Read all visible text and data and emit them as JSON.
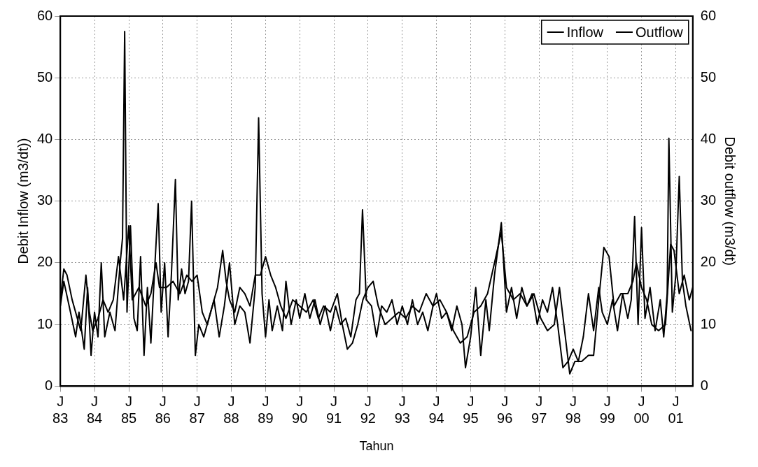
{
  "chart_data": {
    "type": "line",
    "xlabel": "Tahun",
    "ylabel": "Debit Inflow (m3/dt))",
    "y2label": "Debit outflow (m3/dt)",
    "xlim": [
      "1983-01-01",
      "2001-07-01"
    ],
    "xticks": [
      {
        "value": "1983-01-01",
        "label": "J\n83"
      },
      {
        "value": "1984-01-01",
        "label": "J\n84"
      },
      {
        "value": "1985-01-01",
        "label": "J\n85"
      },
      {
        "value": "1986-01-01",
        "label": "J\n86"
      },
      {
        "value": "1987-01-01",
        "label": "J\n87"
      },
      {
        "value": "1988-01-01",
        "label": "J\n88"
      },
      {
        "value": "1989-01-01",
        "label": "J\n89"
      },
      {
        "value": "1990-01-01",
        "label": "J\n90"
      },
      {
        "value": "1991-01-01",
        "label": "J\n91"
      },
      {
        "value": "1992-01-01",
        "label": "J\n92"
      },
      {
        "value": "1993-01-01",
        "label": "J\n93"
      },
      {
        "value": "1994-01-01",
        "label": "J\n94"
      },
      {
        "value": "1995-01-01",
        "label": "J\n95"
      },
      {
        "value": "1996-01-01",
        "label": "J\n96"
      },
      {
        "value": "1997-01-01",
        "label": "J\n97"
      },
      {
        "value": "1998-01-01",
        "label": "J\n98"
      },
      {
        "value": "1999-01-01",
        "label": "J\n99"
      },
      {
        "value": "2000-01-01",
        "label": "J\n00"
      },
      {
        "value": "2001-01-01",
        "label": "J\n01"
      }
    ],
    "ylim": [
      0,
      60
    ],
    "yticks": [
      0,
      10,
      20,
      30,
      40,
      50,
      60
    ],
    "y2lim": [
      0,
      60
    ],
    "y2ticks": [
      0,
      10,
      20,
      30,
      40,
      50,
      60
    ],
    "grid": true,
    "legend": "top right",
    "marker": "none",
    "line_style": "solid",
    "series": [
      {
        "name": "Inflow",
        "color": "#000000",
        "x": [
          "1983-01-01",
          "1983-02-07",
          "1983-04-19",
          "1983-06-13",
          "1983-07-19",
          "1983-09-13",
          "1983-10-19",
          "1983-11-25",
          "1984-01-01",
          "1984-02-07",
          "1984-03-13",
          "1984-04-19",
          "1984-06-13",
          "1984-08-07",
          "1984-10-01",
          "1984-10-26",
          "1984-11-18",
          "1984-12-13",
          "1985-01-19",
          "1985-02-25",
          "1985-04-01",
          "1985-05-07",
          "1985-06-13",
          "1985-07-19",
          "1985-08-25",
          "1985-10-01",
          "1985-11-11",
          "1985-12-13",
          "1986-01-19",
          "1986-02-25",
          "1986-04-01",
          "1986-05-14",
          "1986-06-13",
          "1986-07-19",
          "1986-08-25",
          "1986-10-01",
          "1986-11-03",
          "1986-12-13",
          "1987-01-19",
          "1987-03-13",
          "1987-05-07",
          "1987-07-01",
          "1987-08-25",
          "1987-10-19",
          "1987-12-13",
          "1988-02-07",
          "1988-04-01",
          "1988-05-25",
          "1988-07-19",
          "1988-09-13",
          "1988-10-19",
          "1988-11-25",
          "1989-01-01",
          "1989-02-07",
          "1989-03-13",
          "1989-05-07",
          "1989-07-01",
          "1989-08-07",
          "1989-10-01",
          "1989-11-25",
          "1990-01-01",
          "1990-02-25",
          "1990-04-19",
          "1990-06-13",
          "1990-08-07",
          "1990-10-01",
          "1990-11-25",
          "1991-01-19",
          "1991-03-13",
          "1991-05-07",
          "1991-07-01",
          "1991-08-25",
          "1991-10-01",
          "1991-11-03",
          "1991-12-13",
          "1992-02-07",
          "1992-04-01",
          "1992-05-25",
          "1992-07-19",
          "1992-09-13",
          "1992-11-07",
          "1993-01-01",
          "1993-02-25",
          "1993-04-19",
          "1993-06-13",
          "1993-08-07",
          "1993-10-01",
          "1993-11-25",
          "1994-01-01",
          "1994-02-25",
          "1994-04-19",
          "1994-06-13",
          "1994-08-07",
          "1994-10-01",
          "1994-11-07",
          "1995-01-01",
          "1995-02-25",
          "1995-04-19",
          "1995-06-13",
          "1995-07-19",
          "1995-09-13",
          "1995-11-25",
          "1996-01-19",
          "1996-03-13",
          "1996-05-07",
          "1996-07-01",
          "1996-08-25",
          "1996-10-19",
          "1996-12-13",
          "1997-02-07",
          "1997-04-01",
          "1997-05-25",
          "1997-07-19",
          "1997-09-13",
          "1997-11-07",
          "1998-01-01",
          "1998-02-25",
          "1998-04-19",
          "1998-06-13",
          "1998-08-07",
          "1998-10-01",
          "1998-11-07",
          "1999-01-01",
          "1999-02-25",
          "1999-04-19",
          "1999-06-13",
          "1999-08-07",
          "1999-09-13",
          "1999-10-19",
          "1999-11-25",
          "2000-01-01",
          "2000-02-07",
          "2000-04-01",
          "2000-05-25",
          "2000-07-19",
          "2000-08-25",
          "2000-10-01",
          "2000-10-19",
          "2000-11-25",
          "2001-01-01",
          "2001-02-07",
          "2001-03-13",
          "2001-04-19",
          "2001-06-13"
        ],
        "values": [
          13,
          17,
          12,
          8,
          12,
          6,
          16,
          5,
          12,
          8,
          20,
          8,
          12,
          9,
          20,
          24,
          57.5,
          12,
          26,
          11,
          9,
          21,
          5,
          16,
          7,
          18,
          29.6,
          12,
          20,
          8,
          18,
          33.5,
          14,
          19,
          15,
          17,
          30,
          5,
          10,
          8,
          11,
          14,
          8,
          13,
          20,
          10,
          13,
          12,
          7,
          16,
          43.5,
          15,
          8,
          14,
          9,
          13,
          9,
          17,
          10,
          14,
          11,
          15,
          11,
          14,
          10,
          13,
          9,
          13,
          10,
          11,
          8,
          14,
          15,
          28.6,
          14,
          13,
          8,
          13,
          12,
          14,
          10,
          13,
          10,
          14,
          10,
          12,
          9,
          13,
          15,
          11,
          12,
          9,
          13,
          10,
          3,
          8,
          16,
          5,
          14,
          9,
          18,
          26.5,
          12,
          16,
          11,
          16,
          13,
          15,
          10,
          14,
          12,
          16,
          10,
          3,
          4,
          6,
          4,
          8,
          15,
          9,
          16,
          12,
          10,
          14,
          9,
          15,
          11,
          14,
          27.5,
          10,
          25.7,
          11,
          16,
          9,
          14,
          8,
          15,
          40.2,
          12,
          18,
          34,
          17,
          13,
          9
        ]
      },
      {
        "name": "Outflow",
        "color": "#000000",
        "x": [
          "1983-01-01",
          "1983-02-07",
          "1983-03-13",
          "1983-05-07",
          "1983-07-01",
          "1983-08-07",
          "1983-10-01",
          "1983-11-07",
          "1983-12-13",
          "1984-02-07",
          "1984-04-01",
          "1984-05-25",
          "1984-07-19",
          "1984-09-13",
          "1984-11-07",
          "1985-01-01",
          "1985-02-07",
          "1985-04-19",
          "1985-07-01",
          "1985-08-25",
          "1985-10-19",
          "1985-11-25",
          "1986-02-07",
          "1986-04-19",
          "1986-07-01",
          "1986-09-13",
          "1986-11-07",
          "1987-01-01",
          "1987-02-25",
          "1987-04-19",
          "1987-06-13",
          "1987-08-07",
          "1987-10-01",
          "1987-11-07",
          "1987-12-13",
          "1988-02-07",
          "1988-04-01",
          "1988-05-25",
          "1988-07-19",
          "1988-09-13",
          "1988-11-07",
          "1989-01-01",
          "1989-02-25",
          "1989-04-19",
          "1989-06-13",
          "1989-08-07",
          "1989-10-19",
          "1990-01-01",
          "1990-03-13",
          "1990-05-25",
          "1990-07-19",
          "1990-09-13",
          "1990-11-25",
          "1991-02-07",
          "1991-04-01",
          "1991-05-25",
          "1991-07-19",
          "1991-09-13",
          "1991-11-07",
          "1992-01-01",
          "1992-02-25",
          "1992-04-19",
          "1992-07-01",
          "1992-09-13",
          "1992-11-25",
          "1993-02-07",
          "1993-04-19",
          "1993-07-01",
          "1993-09-13",
          "1993-11-25",
          "1994-02-07",
          "1994-04-19",
          "1994-07-01",
          "1994-09-13",
          "1994-11-25",
          "1995-02-07",
          "1995-04-19",
          "1995-07-01",
          "1995-09-13",
          "1995-11-25",
          "1996-01-19",
          "1996-04-01",
          "1996-06-13",
          "1996-08-25",
          "1996-11-07",
          "1997-01-19",
          "1997-04-01",
          "1997-06-13",
          "1997-08-07",
          "1997-10-01",
          "1997-11-25",
          "1998-01-19",
          "1998-04-01",
          "1998-06-13",
          "1998-08-07",
          "1998-10-01",
          "1998-11-25",
          "1999-01-19",
          "1999-03-13",
          "1999-05-25",
          "1999-08-07",
          "1999-10-01",
          "1999-11-07",
          "2000-01-01",
          "2000-02-25",
          "2000-04-19",
          "2000-07-01",
          "2000-09-13",
          "2000-11-07",
          "2000-12-13",
          "2001-02-07",
          "2001-04-01",
          "2001-05-25",
          "2001-07-01"
        ],
        "values": [
          14,
          19,
          18,
          14,
          11,
          9,
          18,
          12,
          9,
          11,
          14,
          12,
          14,
          21,
          14,
          26,
          14,
          16,
          13,
          15,
          20,
          16,
          16,
          17,
          15,
          18,
          17,
          18,
          12,
          10,
          13,
          16,
          22,
          17,
          14,
          12,
          16,
          15,
          13,
          18,
          18,
          21,
          18,
          16,
          13,
          11,
          14,
          13,
          12,
          14,
          11,
          13,
          12,
          15,
          10,
          6,
          7,
          10,
          14,
          16,
          17,
          13,
          10,
          11,
          12,
          11,
          13,
          12,
          15,
          13,
          14,
          12,
          9,
          7,
          8,
          12,
          13,
          15,
          20,
          25,
          16,
          14,
          15,
          13,
          15,
          11,
          9,
          10,
          16,
          9,
          2,
          4,
          4,
          5,
          5,
          14,
          22.5,
          21,
          13,
          15,
          15,
          17,
          20,
          16,
          14,
          10,
          9,
          10,
          23,
          22,
          15,
          18,
          14,
          16
        ]
      }
    ]
  }
}
